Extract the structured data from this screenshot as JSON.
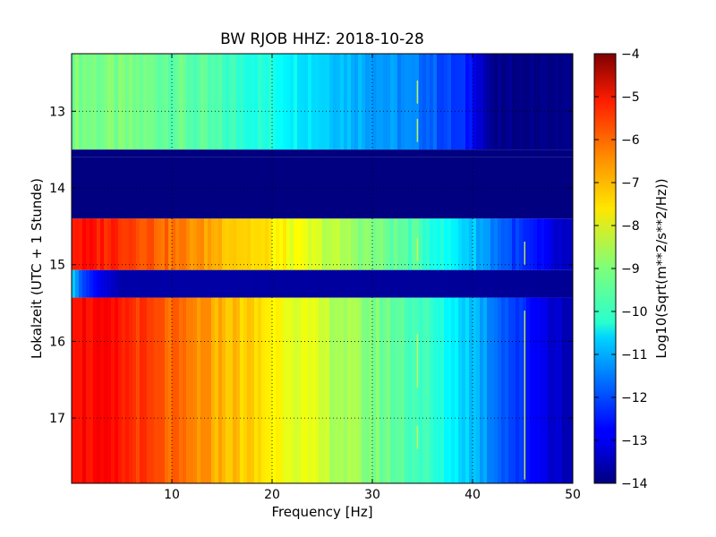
{
  "chart_data": {
    "type": "heatmap",
    "title": "BW RJOB HHZ: 2018-10-28",
    "xlabel": "Frequency [Hz]",
    "ylabel": "Lokalzeit (UTC + 1 Stunde)",
    "colorbar_label": "Log10(Sqrt(m**2/s**2/Hz))",
    "xlim": [
      0,
      50
    ],
    "ylim": [
      12.25,
      17.85
    ],
    "y_inverted": true,
    "x_ticks": [
      10,
      20,
      30,
      40,
      50
    ],
    "x_tick_labels": [
      "10",
      "20",
      "30",
      "40",
      "50"
    ],
    "y_ticks": [
      13,
      14,
      15,
      16,
      17
    ],
    "y_tick_labels": [
      "13",
      "14",
      "15",
      "16",
      "17"
    ],
    "color_scale": {
      "min": -14,
      "max": -4,
      "colormap": "jet"
    },
    "colorbar_ticks": [
      -4,
      -5,
      -6,
      -7,
      -8,
      -9,
      -10,
      -11,
      -12,
      -13,
      -14
    ],
    "colorbar_tick_labels": [
      "−4",
      "−5",
      "−6",
      "−7",
      "−8",
      "−9",
      "−10",
      "−11",
      "−12",
      "−13",
      "−14"
    ],
    "grid": "dotted",
    "bands": [
      {
        "y_start": 12.25,
        "y_end": 13.5,
        "state": "quiet",
        "freq_hz": [
          0,
          10,
          20,
          25,
          30,
          35,
          40,
          42,
          50
        ],
        "level": [
          -9.0,
          -9.2,
          -10.0,
          -10.6,
          -11.1,
          -11.6,
          -12.6,
          -14.0,
          -14.0
        ]
      },
      {
        "y_start": 13.5,
        "y_end": 13.6,
        "state": "no data",
        "level_const": -14.0
      },
      {
        "y_start": 13.6,
        "y_end": 14.4,
        "state": "no data",
        "level_const": -14.0
      },
      {
        "y_start": 14.4,
        "y_end": 15.07,
        "state": "active",
        "freq_hz": [
          0,
          5,
          10,
          15,
          20,
          25,
          30,
          35,
          40,
          45,
          50
        ],
        "level": [
          -5.4,
          -5.6,
          -6.4,
          -7.0,
          -7.6,
          -8.3,
          -9.0,
          -9.6,
          -10.8,
          -12.4,
          -13.6
        ]
      },
      {
        "y_start": 15.07,
        "y_end": 15.43,
        "state": "gap",
        "freq_hz": [
          0,
          1,
          3,
          5,
          50
        ],
        "level": [
          -10.5,
          -12.0,
          -13.0,
          -13.6,
          -13.8
        ]
      },
      {
        "y_start": 15.43,
        "y_end": 17.85,
        "state": "active",
        "freq_hz": [
          0,
          5,
          10,
          15,
          20,
          25,
          30,
          35,
          40,
          45,
          50
        ],
        "level": [
          -5.2,
          -5.5,
          -6.3,
          -7.0,
          -7.6,
          -8.3,
          -9.0,
          -9.6,
          -10.8,
          -12.4,
          -13.6
        ]
      }
    ],
    "features": [
      {
        "label": "line near 34.5 Hz",
        "freq_hz": 34.5,
        "y_ranges": [
          [
            12.6,
            12.9
          ],
          [
            13.1,
            13.4
          ],
          [
            14.65,
            14.95
          ],
          [
            15.9,
            16.6
          ],
          [
            17.1,
            17.4
          ]
        ]
      },
      {
        "label": "line near 45 Hz",
        "freq_hz": 45.2,
        "y_ranges": [
          [
            14.7,
            15.0
          ],
          [
            15.6,
            17.8
          ]
        ]
      }
    ]
  }
}
